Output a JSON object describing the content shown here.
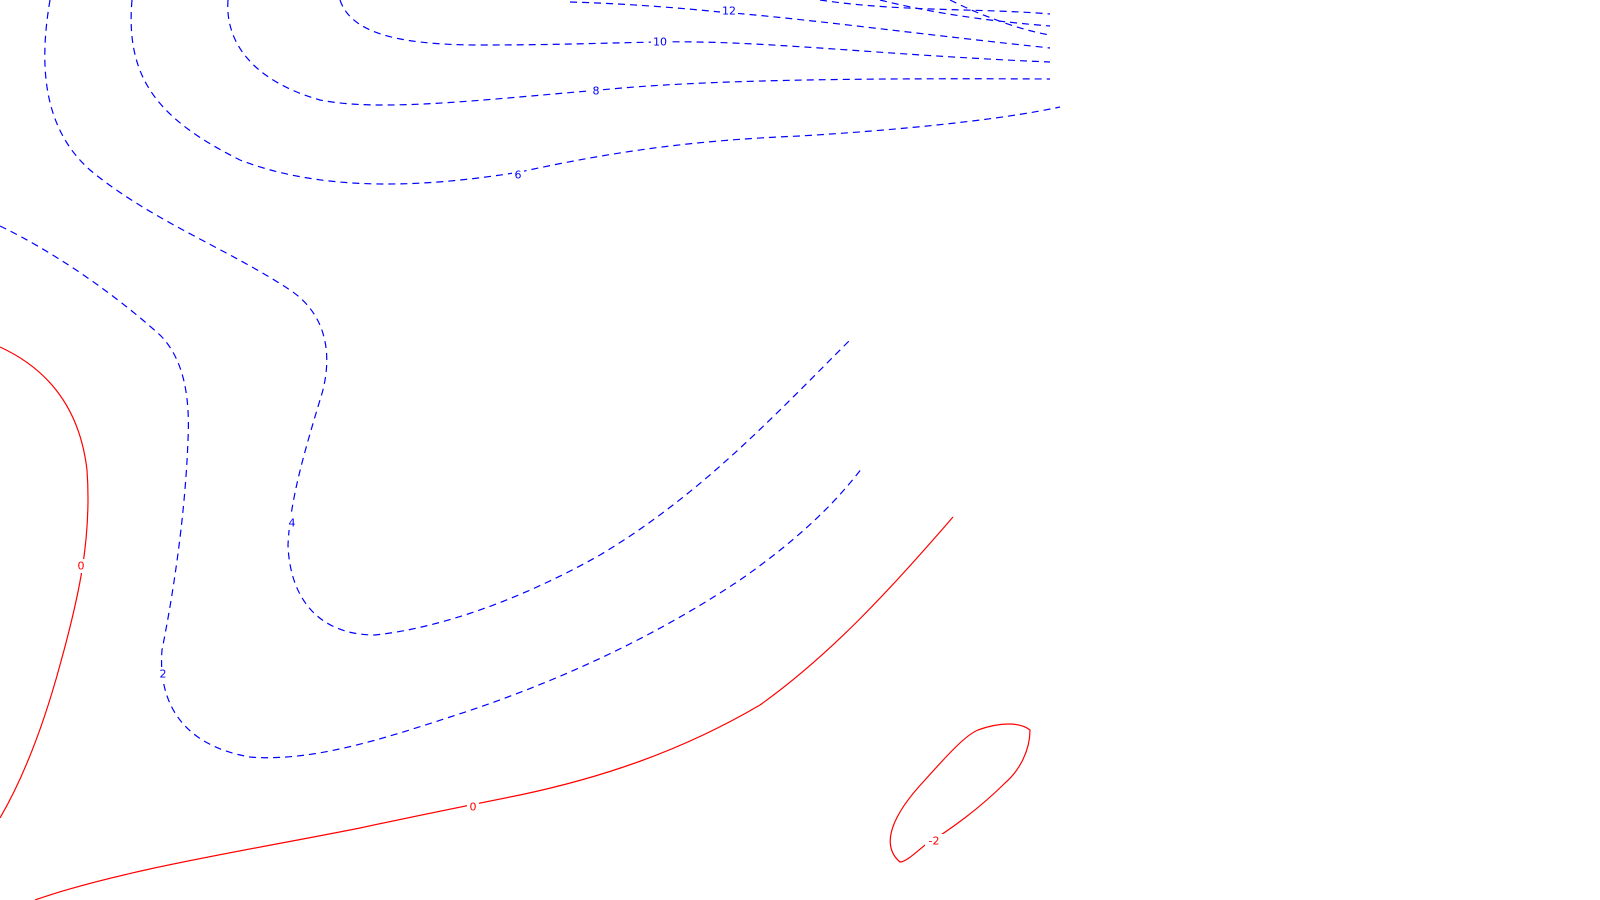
{
  "chart_data": {
    "type": "contour",
    "title": "",
    "xlabel": "",
    "ylabel": "",
    "colors": {
      "positive": "#0000ff",
      "zero_negative": "#ff0000"
    },
    "line_styles": {
      "positive": "dashed",
      "zero_negative": "solid"
    },
    "contour_labels": [
      "12",
      "10",
      "8",
      "6",
      "4",
      "2",
      "0",
      "0",
      "-2"
    ],
    "contour_levels": [
      {
        "level": 12,
        "label": "12",
        "style": "dashed",
        "color": "#0000ff"
      },
      {
        "level": 10,
        "label": "10",
        "style": "dashed",
        "color": "#0000ff"
      },
      {
        "level": 8,
        "label": "8",
        "style": "dashed",
        "color": "#0000ff"
      },
      {
        "level": 6,
        "label": "6",
        "style": "dashed",
        "color": "#0000ff"
      },
      {
        "level": 4,
        "label": "4",
        "style": "dashed",
        "color": "#0000ff"
      },
      {
        "level": 2,
        "label": "2",
        "style": "dashed",
        "color": "#0000ff"
      },
      {
        "level": 0,
        "label": "0",
        "style": "solid",
        "color": "#ff0000"
      },
      {
        "level": -2,
        "label": "-2",
        "style": "solid",
        "color": "#ff0000"
      }
    ]
  }
}
